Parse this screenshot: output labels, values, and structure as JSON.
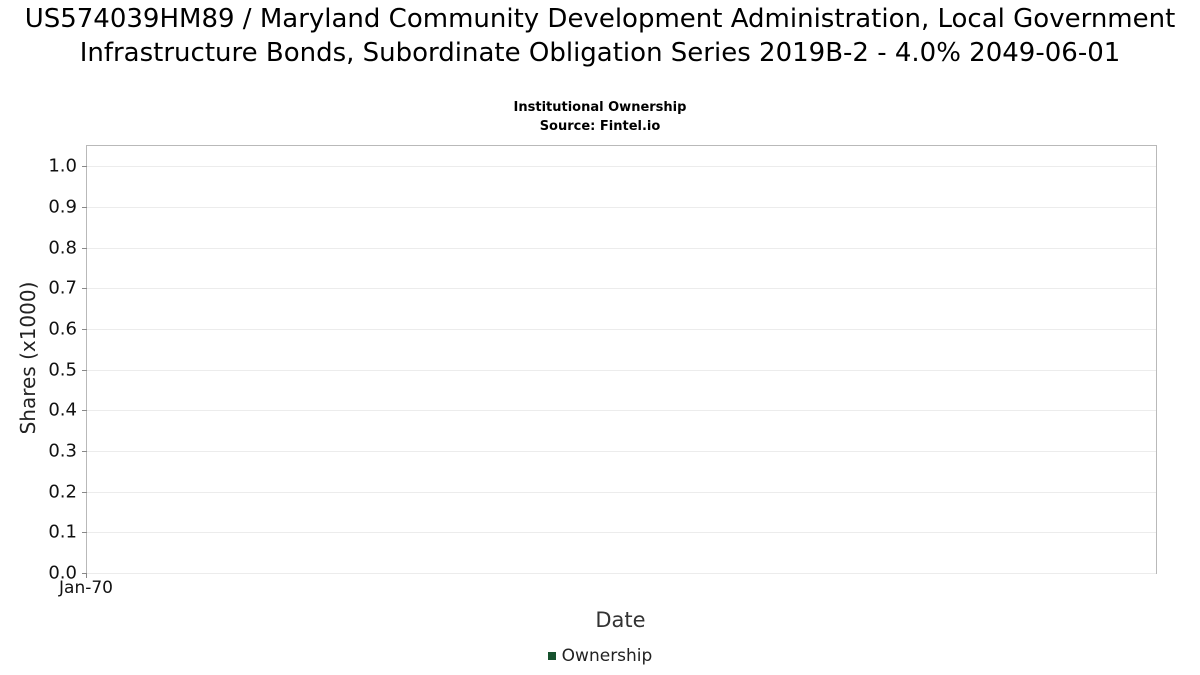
{
  "title": "US574039HM89 / Maryland Community Development Administration, Local Government Infrastructure Bonds, Subordinate Obligation Series 2019B-2 - 4.0% 2049-06-01",
  "subtitle": "Institutional Ownership",
  "source": "Source: Fintel.io",
  "colors": {
    "series_green": "#17522e",
    "gridline": "#ececec",
    "plot_border": "#b9b9b9"
  },
  "chart_data": {
    "type": "line",
    "title": "US574039HM89 / Maryland Community Development Administration, Local Government Infrastructure Bonds, Subordinate Obligation Series 2019B-2 - 4.0% 2049-06-01",
    "subtitle": "Institutional Ownership",
    "source": "Source: Fintel.io",
    "xlabel": "Date",
    "ylabel": "Shares (x1000)",
    "ylim": [
      0.0,
      1.05
    ],
    "yticks": [
      0.0,
      0.1,
      0.2,
      0.3,
      0.4,
      0.5,
      0.6,
      0.7,
      0.8,
      0.9,
      1.0
    ],
    "xticks": [
      "Jan-70"
    ],
    "grid": "horizontal",
    "legend_position": "bottom",
    "series": [
      {
        "name": "Ownership",
        "color": "#17522e",
        "x": [],
        "values": []
      }
    ]
  }
}
